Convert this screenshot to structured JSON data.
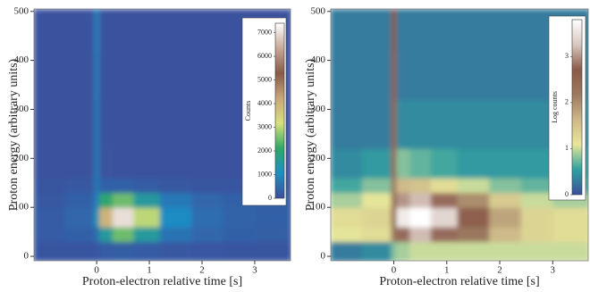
{
  "chart_data": [
    {
      "type": "heatmap",
      "xlabel": "Proton-electron relative time [s]",
      "ylabel": "Proton energy (arbitrary units)",
      "xlim": [
        -1.19,
        3.68
      ],
      "ylim": [
        -9,
        505
      ],
      "xticks": [
        0,
        1,
        2,
        3
      ],
      "yticks": [
        0,
        100,
        200,
        300,
        400,
        500
      ],
      "x_bins": [
        -1.2,
        -0.6,
        -0.05,
        0.05,
        0.3,
        0.7,
        1.2,
        1.8,
        2.4,
        3,
        3.7
      ],
      "y_bins": [
        -10,
        30,
        60,
        100,
        130,
        160,
        220,
        320,
        420,
        505
      ],
      "z": [
        [
          100,
          100,
          150,
          200,
          250,
          200,
          150,
          120,
          100,
          100
        ],
        [
          200,
          300,
          500,
          1500,
          2500,
          1500,
          600,
          400,
          300,
          250
        ],
        [
          200,
          400,
          1200,
          4000,
          7000,
          3000,
          1000,
          500,
          350,
          300
        ],
        [
          150,
          300,
          800,
          2000,
          2500,
          1500,
          700,
          400,
          300,
          250
        ],
        [
          100,
          150,
          700,
          300,
          300,
          200,
          150,
          100,
          100,
          100
        ],
        [
          50,
          60,
          700,
          80,
          60,
          50,
          50,
          50,
          50,
          50
        ],
        [
          50,
          50,
          700,
          50,
          50,
          50,
          50,
          50,
          50,
          50
        ],
        [
          50,
          50,
          750,
          50,
          50,
          50,
          50,
          50,
          50,
          50
        ],
        [
          50,
          50,
          800,
          50,
          50,
          50,
          50,
          50,
          50,
          50
        ]
      ],
      "colorbar_label": "Counts",
      "zlim": [
        0,
        7400
      ],
      "zticks": [
        0,
        1000,
        2000,
        3000,
        4000,
        5000,
        6000,
        7000
      ],
      "colormap": [
        "#3c4f9c",
        "#1d8fc4",
        "#2fa866",
        "#d9e07a",
        "#c9a77a",
        "#8a5a48",
        "#c8a898",
        "#ffffff"
      ]
    },
    {
      "type": "heatmap",
      "xlabel": "Proton-electron relative time [s]",
      "ylabel": "Proton energy (arbitrary units)",
      "xlim": [
        -1.19,
        3.67
      ],
      "ylim": [
        -9,
        505
      ],
      "xticks": [
        0,
        1,
        2,
        3
      ],
      "yticks": [
        0,
        100,
        200,
        300,
        400,
        500
      ],
      "x_bins": [
        -1.2,
        -0.6,
        -0.05,
        0.05,
        0.3,
        0.7,
        1.2,
        1.8,
        2.4,
        3,
        3.7
      ],
      "y_bins": [
        -10,
        30,
        60,
        100,
        130,
        160,
        220,
        320,
        420,
        505
      ],
      "z": [
        [
          0.3,
          0.4,
          0.8,
          0.9,
          1.0,
          1.0,
          1.0,
          1.0,
          1.0,
          1.0
        ],
        [
          1.1,
          1.2,
          2.2,
          2.8,
          3.2,
          2.8,
          2.2,
          1.6,
          1.3,
          1.2
        ],
        [
          1.2,
          1.3,
          2.5,
          3.6,
          3.8,
          3.4,
          2.6,
          1.8,
          1.3,
          1.2
        ],
        [
          0.9,
          1.1,
          2.4,
          3.0,
          3.2,
          2.8,
          2.0,
          1.4,
          1.0,
          0.9
        ],
        [
          0.6,
          0.8,
          2.2,
          1.6,
          1.5,
          1.2,
          1.0,
          0.8,
          0.7,
          0.6
        ],
        [
          0.4,
          0.5,
          2.4,
          0.8,
          0.7,
          0.6,
          0.5,
          0.5,
          0.5,
          0.5
        ],
        [
          0.3,
          0.3,
          2.5,
          0.4,
          0.4,
          0.4,
          0.4,
          0.4,
          0.4,
          0.4
        ],
        [
          0.3,
          0.3,
          2.6,
          0.3,
          0.3,
          0.3,
          0.3,
          0.3,
          0.3,
          0.3
        ],
        [
          0.3,
          0.3,
          2.7,
          0.3,
          0.3,
          0.3,
          0.3,
          0.3,
          0.3,
          0.3
        ]
      ],
      "colorbar_label": "Log counts",
      "zlim": [
        0,
        3.8
      ],
      "zticks": [
        0,
        1,
        2,
        3
      ],
      "colormap": [
        "#3c4f9c",
        "#2fa0a0",
        "#e6e69a",
        "#cdb889",
        "#9b7a60",
        "#8a5a48",
        "#d8c8c0",
        "#ffffff"
      ]
    }
  ]
}
